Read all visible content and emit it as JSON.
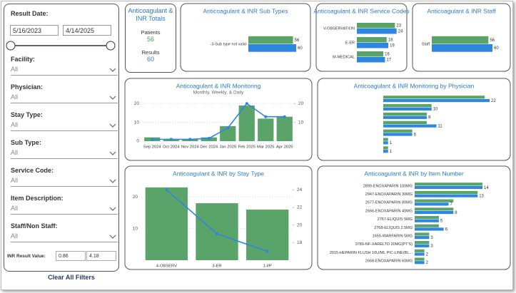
{
  "filters": {
    "result_date": {
      "label": "Result Date:",
      "start": "5/16/2023",
      "end": "4/14/2025"
    },
    "dropdowns": [
      {
        "label": "Facility:",
        "value": "All"
      },
      {
        "label": "Physician:",
        "value": "All"
      },
      {
        "label": "Stay Type:",
        "value": "All"
      },
      {
        "label": "Sub Type:",
        "value": "All"
      },
      {
        "label": "Service Code:",
        "value": "All"
      },
      {
        "label": "Item Description:",
        "value": "All"
      },
      {
        "label": "Staff/Non Staff:",
        "value": "All"
      }
    ],
    "inr": {
      "label": "INR Result Value:",
      "min": "0.86",
      "max": "4.18"
    },
    "clear": "Clear All Filters"
  },
  "totals": {
    "title": "Anticoagulant & INR Totals",
    "items": [
      {
        "label": "Patients",
        "value": 56
      },
      {
        "label": "Results",
        "value": 60
      }
    ]
  },
  "chart_data": [
    {
      "type": "hbar",
      "title": "Anticoagulant & INR Sub Types",
      "categories": [
        "-3-Sub type not valid"
      ],
      "series": [
        {
          "color": "#5aa469",
          "values": [
            56
          ]
        },
        {
          "color": "#2f86e0",
          "values": [
            60
          ]
        }
      ],
      "xlim": [
        0,
        60
      ]
    },
    {
      "type": "hbar",
      "title": "Anticoagulant & INR Service Codes",
      "categories": [
        "V-OBSERVATION",
        "E-ER",
        "M-MEDICAL"
      ],
      "series": [
        {
          "color": "#5aa469",
          "values": [
            23,
            18,
            16
          ]
        },
        {
          "color": "#2f86e0",
          "values": [
            24,
            19,
            17
          ]
        }
      ],
      "xlim": [
        0,
        25
      ]
    },
    {
      "type": "hbar",
      "title": "Anticoagulant & INR Staff",
      "categories": [
        "Staff"
      ],
      "series": [
        {
          "color": "#5aa469",
          "values": [
            56
          ]
        },
        {
          "color": "#2f86e0",
          "values": [
            60
          ]
        }
      ],
      "xlim": [
        0,
        60
      ]
    },
    {
      "type": "combo",
      "title": "Anticoagulant & INR Monitoring",
      "subtitle": "Monthly, Weekly, & Daily",
      "categories": [
        "Sep 2024",
        "Oct 2024",
        "Nov 2024",
        "Dec 2024",
        "Jan 2025",
        "Feb 2025",
        "Mar 2025",
        "Apr 2025"
      ],
      "series": [
        {
          "kind": "bar",
          "color": "#5aa469",
          "values": [
            2,
            1,
            1,
            2,
            8,
            19,
            12,
            13
          ]
        },
        {
          "kind": "line",
          "color": "#2f86e0",
          "axis": "y2",
          "values": [
            1,
            1,
            1,
            1.5,
            7,
            20,
            13,
            13
          ]
        }
      ],
      "ylim": [
        0,
        22
      ],
      "yticks": [
        0,
        10,
        20
      ],
      "y2lim": [
        0,
        22
      ],
      "y2ticks": [
        10,
        20
      ]
    },
    {
      "type": "hbar",
      "title": "Anticoagulant & INR Monitoring by Physician",
      "categories": [
        null,
        null,
        null,
        null,
        null,
        null,
        null
      ],
      "series": [
        {
          "color": "#5aa469",
          "values": [
            21,
            10,
            9,
            9,
            6,
            1,
            1
          ]
        },
        {
          "color": "#2f86e0",
          "values": [
            22,
            10,
            9,
            11,
            6,
            1,
            1
          ]
        }
      ],
      "xlim": [
        0,
        22
      ]
    },
    {
      "type": "combo",
      "title": "Anticoagulant & INR by Stay Type",
      "categories": [
        "4-OBSERV",
        "3-ER",
        "1-I/P"
      ],
      "series": [
        {
          "kind": "bar",
          "color": "#5aa469",
          "values": [
            23,
            18,
            16
          ]
        },
        {
          "kind": "line",
          "color": "#2f86e0",
          "axis": "y2",
          "values": [
            24,
            19,
            17
          ]
        }
      ],
      "ylim": [
        0,
        25
      ],
      "yticks": [
        10,
        20
      ],
      "y2lim": [
        16,
        25
      ],
      "y2ticks": [
        18,
        20,
        22,
        24
      ]
    },
    {
      "type": "hbar",
      "title": "Anticoagulant & INR by Item Number",
      "categories": [
        "2899-ENOXAPARIN 100MG",
        "2947-ENOXAPARIN 30MG",
        "2677-ENOXAPARIN 80MG",
        "2666-ENOXAPARIN 40MG",
        "2767-ELIQUIS 5MG",
        "2768-ELIQUIS 2.5MG",
        "1655-WARFARIN 5MG",
        "3789-NF-XARELTO 20MG(PT'S)",
        "2015-HEPARIN FLUSH 10U/ML PIC-LINE(BL...",
        "2668-ENOXAPARIN 60MG"
      ],
      "series": [
        {
          "color": "#5aa469",
          "values": [
            14,
            13,
            8,
            8,
            5,
            5,
            3,
            3,
            2,
            2
          ]
        },
        {
          "color": "#2f86e0",
          "values": [
            14,
            13,
            7,
            8,
            5,
            6,
            3,
            3,
            2,
            2
          ]
        }
      ],
      "xlim": [
        0,
        14
      ]
    }
  ]
}
